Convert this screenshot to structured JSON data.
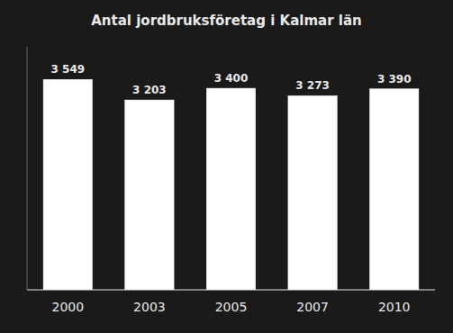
{
  "chart_data": {
    "type": "bar",
    "title": "Antal jordbruksföretag i Kalmar län",
    "categories": [
      "2000",
      "2003",
      "2005",
      "2007",
      "2010"
    ],
    "values": [
      3549,
      3203,
      3400,
      3273,
      3390
    ],
    "value_labels": [
      "3 549",
      "3 203",
      "3 400",
      "3 273",
      "3 390"
    ],
    "data_labels": true,
    "color": "#ffffff",
    "ylim": [
      0,
      4100
    ],
    "grid": false,
    "tick_labels": "x"
  }
}
